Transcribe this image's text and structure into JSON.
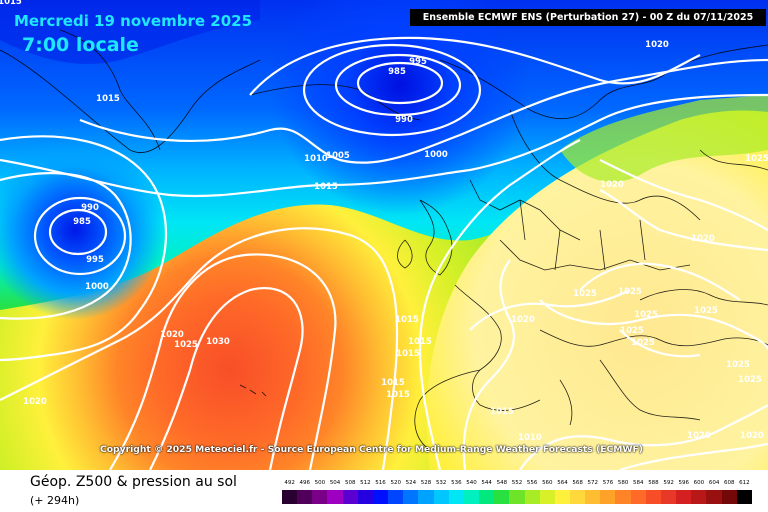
{
  "header": {
    "date": "Mercredi 19 novembre 2025",
    "local_time": "7:00 locale",
    "run": "Ensemble ECMWF ENS  (Perturbation 27)  -  00 Z du 07/11/2025"
  },
  "credit": "Copyright © 2025 Meteociel.fr - Source European Centre for Medium-Range Weather Forecasts (ECMWF)",
  "footer": {
    "title": "Géop. Z500 & pression au sol",
    "forecast_hour": "(+ 294h)"
  },
  "legend": {
    "levels": [
      "492",
      "496",
      "500",
      "504",
      "508",
      "512",
      "516",
      "520",
      "524",
      "528",
      "532",
      "536",
      "540",
      "544",
      "548",
      "552",
      "556",
      "560",
      "564",
      "568",
      "572",
      "576",
      "580",
      "584",
      "588",
      "592",
      "596",
      "600",
      "604",
      "608",
      "612"
    ],
    "colors": [
      "#2a0030",
      "#50005a",
      "#7a0088",
      "#9d00c0",
      "#5a00d0",
      "#2500e0",
      "#0010ff",
      "#0045ff",
      "#0075ff",
      "#00a2ff",
      "#00c8ff",
      "#00e6f5",
      "#00f0c0",
      "#00e87e",
      "#28e040",
      "#6ee428",
      "#a8ec26",
      "#d8f028",
      "#fff03c",
      "#ffd83c",
      "#ffbe32",
      "#ffa228",
      "#ff8428",
      "#ff6a28",
      "#f84e28",
      "#e83828",
      "#d42020",
      "#b81818",
      "#981010",
      "#740808",
      "#000000"
    ]
  },
  "isobars": [
    {
      "label": "985",
      "kind": "low"
    },
    {
      "label": "995",
      "kind": "low"
    },
    {
      "label": "990",
      "kind": "low"
    },
    {
      "label": "1000",
      "kind": "low"
    },
    {
      "label": "1005",
      "kind": "low"
    },
    {
      "label": "1010",
      "kind": "low"
    },
    {
      "label": "1015",
      "kind": "mid"
    },
    {
      "label": "1020",
      "kind": "mid"
    },
    {
      "label": "1025",
      "kind": "high"
    },
    {
      "label": "1030",
      "kind": "high"
    }
  ],
  "map_labels": [
    {
      "text": "1015",
      "at": "top-left"
    },
    {
      "text": "1015",
      "at": "greenland"
    },
    {
      "text": "995",
      "at": "iceland-low-top"
    },
    {
      "text": "985",
      "at": "iceland-low-core"
    },
    {
      "text": "990",
      "at": "iceland-low-bottom"
    },
    {
      "text": "1000",
      "at": "norwegian-sea"
    },
    {
      "text": "1010",
      "at": "scotland-north"
    },
    {
      "text": "1005",
      "at": "scotland-north-2"
    },
    {
      "text": "1015",
      "at": "north-atlantic"
    },
    {
      "text": "990",
      "at": "west-low-top"
    },
    {
      "text": "985",
      "at": "west-low-core"
    },
    {
      "text": "995",
      "at": "west-low-bottom"
    },
    {
      "text": "1000",
      "at": "west-low-outer"
    },
    {
      "text": "1020",
      "at": "azores-north"
    },
    {
      "text": "1025",
      "at": "azores-inner"
    },
    {
      "text": "1030",
      "at": "azores-core"
    },
    {
      "text": "1020",
      "at": "southwest-atlantic"
    },
    {
      "text": "1015",
      "at": "biscay-1"
    },
    {
      "text": "1015",
      "at": "biscay-2"
    },
    {
      "text": "1015",
      "at": "biscay-3"
    },
    {
      "text": "1015",
      "at": "iberia-west-1"
    },
    {
      "text": "1015",
      "at": "iberia-west-2"
    },
    {
      "text": "1015",
      "at": "med-west"
    },
    {
      "text": "1010",
      "at": "med-south"
    },
    {
      "text": "1020",
      "at": "siberia-top"
    },
    {
      "text": "1025",
      "at": "russia-east"
    },
    {
      "text": "1020",
      "at": "scandinavia"
    },
    {
      "text": "1020",
      "at": "russia"
    },
    {
      "text": "1025",
      "at": "central-europe-1"
    },
    {
      "text": "1025",
      "at": "central-europe-2"
    },
    {
      "text": "1020",
      "at": "alps"
    },
    {
      "text": "1025",
      "at": "balkans-1"
    },
    {
      "text": "1025",
      "at": "balkans-2"
    },
    {
      "text": "1025",
      "at": "balkans-3"
    },
    {
      "text": "1025",
      "at": "black-sea-west"
    },
    {
      "text": "1025",
      "at": "black-sea-east"
    },
    {
      "text": "1025",
      "at": "turkey"
    },
    {
      "text": "1020",
      "at": "east-med"
    },
    {
      "text": "1020",
      "at": "middle-east"
    }
  ]
}
